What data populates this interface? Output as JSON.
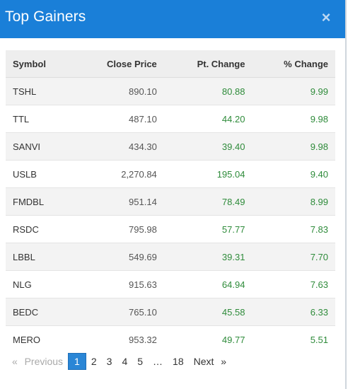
{
  "dialog": {
    "title": "Top Gainers",
    "close_symbol": "×"
  },
  "table": {
    "headers": [
      "Symbol",
      "Close Price",
      "Pt. Change",
      "% Change"
    ],
    "rows": [
      {
        "symbol": "TSHL",
        "close": "890.10",
        "pt": "80.88",
        "pct": "9.99"
      },
      {
        "symbol": "TTL",
        "close": "487.10",
        "pt": "44.20",
        "pct": "9.98"
      },
      {
        "symbol": "SANVI",
        "close": "434.30",
        "pt": "39.40",
        "pct": "9.98"
      },
      {
        "symbol": "USLB",
        "close": "2,270.84",
        "pt": "195.04",
        "pct": "9.40"
      },
      {
        "symbol": "FMDBL",
        "close": "951.14",
        "pt": "78.49",
        "pct": "8.99"
      },
      {
        "symbol": "RSDC",
        "close": "795.98",
        "pt": "57.77",
        "pct": "7.83"
      },
      {
        "symbol": "LBBL",
        "close": "549.69",
        "pt": "39.31",
        "pct": "7.70"
      },
      {
        "symbol": "NLG",
        "close": "915.63",
        "pt": "64.94",
        "pct": "7.63"
      },
      {
        "symbol": "BEDC",
        "close": "765.10",
        "pt": "45.58",
        "pct": "6.33"
      },
      {
        "symbol": "MERO",
        "close": "953.32",
        "pt": "49.77",
        "pct": "5.51"
      }
    ]
  },
  "pagination": {
    "prev_arrow": "«",
    "prev_label": "Previous",
    "pages": [
      "1",
      "2",
      "3",
      "4",
      "5",
      "…",
      "18"
    ],
    "active_page": "1",
    "next_label": "Next",
    "next_arrow": "»"
  },
  "colors": {
    "header_bg": "#1a7fd8",
    "positive": "#2e8b3a",
    "active_page": "#2a86d6"
  }
}
